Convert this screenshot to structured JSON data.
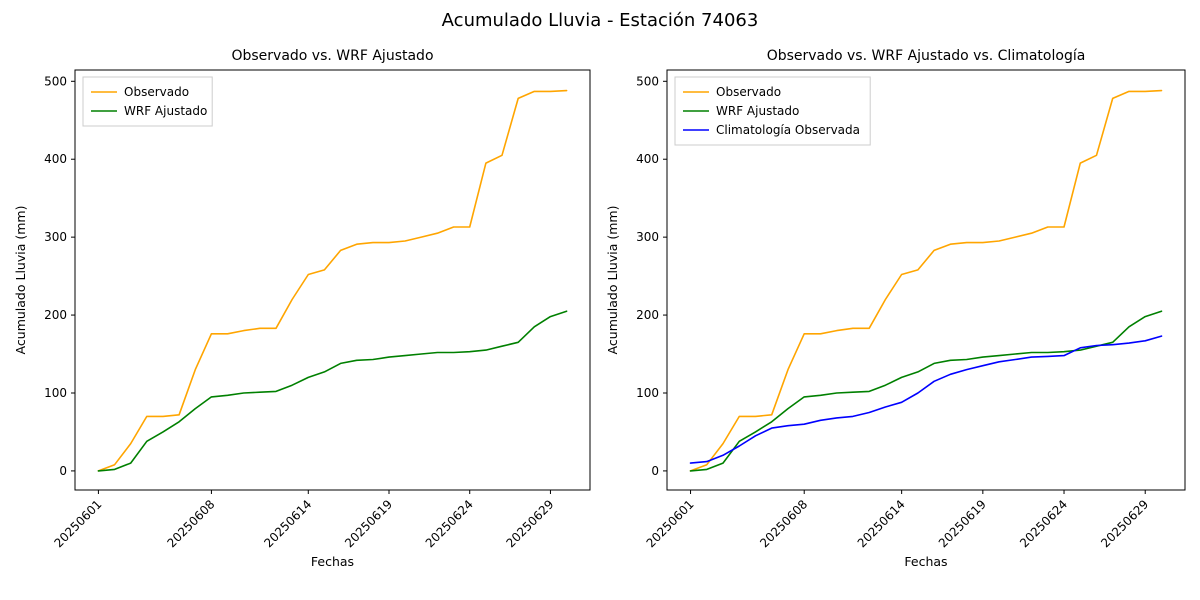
{
  "figure_title": "Acumulado Lluvia - Estación 74063",
  "chart_data": [
    {
      "type": "line",
      "title": "Observado vs. WRF Ajustado",
      "xlabel": "Fechas",
      "ylabel": "Acumulado Lluvia (mm)",
      "ylim": [
        0,
        500
      ],
      "yticks": [
        0,
        100,
        200,
        300,
        400,
        500
      ],
      "grid": false,
      "legend_position": "upper left",
      "x": [
        "20250601",
        "20250602",
        "20250603",
        "20250604",
        "20250605",
        "20250606",
        "20250607",
        "20250608",
        "20250609",
        "20250610",
        "20250611",
        "20250612",
        "20250613",
        "20250614",
        "20250615",
        "20250616",
        "20250617",
        "20250618",
        "20250619",
        "20250620",
        "20250621",
        "20250622",
        "20250623",
        "20250624",
        "20250625",
        "20250626",
        "20250627",
        "20250628",
        "20250629",
        "20250630"
      ],
      "xtick_labels": [
        "20250601",
        "20250608",
        "20250614",
        "20250619",
        "20250624",
        "20250629"
      ],
      "xtick_indices": [
        0,
        7,
        13,
        18,
        23,
        28
      ],
      "series": [
        {
          "name": "Observado",
          "color": "#FFA500",
          "values": [
            0,
            8,
            35,
            70,
            70,
            72,
            130,
            176,
            176,
            180,
            183,
            183,
            220,
            252,
            258,
            283,
            291,
            293,
            293,
            295,
            300,
            305,
            313,
            313,
            395,
            405,
            478,
            487,
            487,
            488
          ]
        },
        {
          "name": "WRF Ajustado",
          "color": "#008000",
          "values": [
            0,
            2,
            10,
            38,
            50,
            63,
            80,
            95,
            97,
            100,
            101,
            102,
            110,
            120,
            127,
            138,
            142,
            143,
            146,
            148,
            150,
            152,
            152,
            153,
            155,
            160,
            165,
            185,
            198,
            205
          ]
        }
      ]
    },
    {
      "type": "line",
      "title": "Observado vs. WRF Ajustado vs. Climatología",
      "xlabel": "Fechas",
      "ylabel": "Acumulado Lluvia (mm)",
      "ylim": [
        0,
        500
      ],
      "yticks": [
        0,
        100,
        200,
        300,
        400,
        500
      ],
      "grid": false,
      "legend_position": "upper left",
      "x": [
        "20250601",
        "20250602",
        "20250603",
        "20250604",
        "20250605",
        "20250606",
        "20250607",
        "20250608",
        "20250609",
        "20250610",
        "20250611",
        "20250612",
        "20250613",
        "20250614",
        "20250615",
        "20250616",
        "20250617",
        "20250618",
        "20250619",
        "20250620",
        "20250621",
        "20250622",
        "20250623",
        "20250624",
        "20250625",
        "20250626",
        "20250627",
        "20250628",
        "20250629",
        "20250630"
      ],
      "xtick_labels": [
        "20250601",
        "20250608",
        "20250614",
        "20250619",
        "20250624",
        "20250629"
      ],
      "xtick_indices": [
        0,
        7,
        13,
        18,
        23,
        28
      ],
      "series": [
        {
          "name": "Observado",
          "color": "#FFA500",
          "values": [
            0,
            8,
            35,
            70,
            70,
            72,
            130,
            176,
            176,
            180,
            183,
            183,
            220,
            252,
            258,
            283,
            291,
            293,
            293,
            295,
            300,
            305,
            313,
            313,
            395,
            405,
            478,
            487,
            487,
            488
          ]
        },
        {
          "name": "WRF Ajustado",
          "color": "#008000",
          "values": [
            0,
            2,
            10,
            38,
            50,
            63,
            80,
            95,
            97,
            100,
            101,
            102,
            110,
            120,
            127,
            138,
            142,
            143,
            146,
            148,
            150,
            152,
            152,
            153,
            155,
            160,
            165,
            185,
            198,
            205
          ]
        },
        {
          "name": "Climatología Observada",
          "color": "#0000FF",
          "values": [
            10,
            12,
            20,
            32,
            45,
            55,
            58,
            60,
            65,
            68,
            70,
            75,
            82,
            88,
            100,
            115,
            124,
            130,
            135,
            140,
            143,
            146,
            147,
            148,
            158,
            161,
            162,
            164,
            167,
            173
          ]
        }
      ]
    }
  ]
}
